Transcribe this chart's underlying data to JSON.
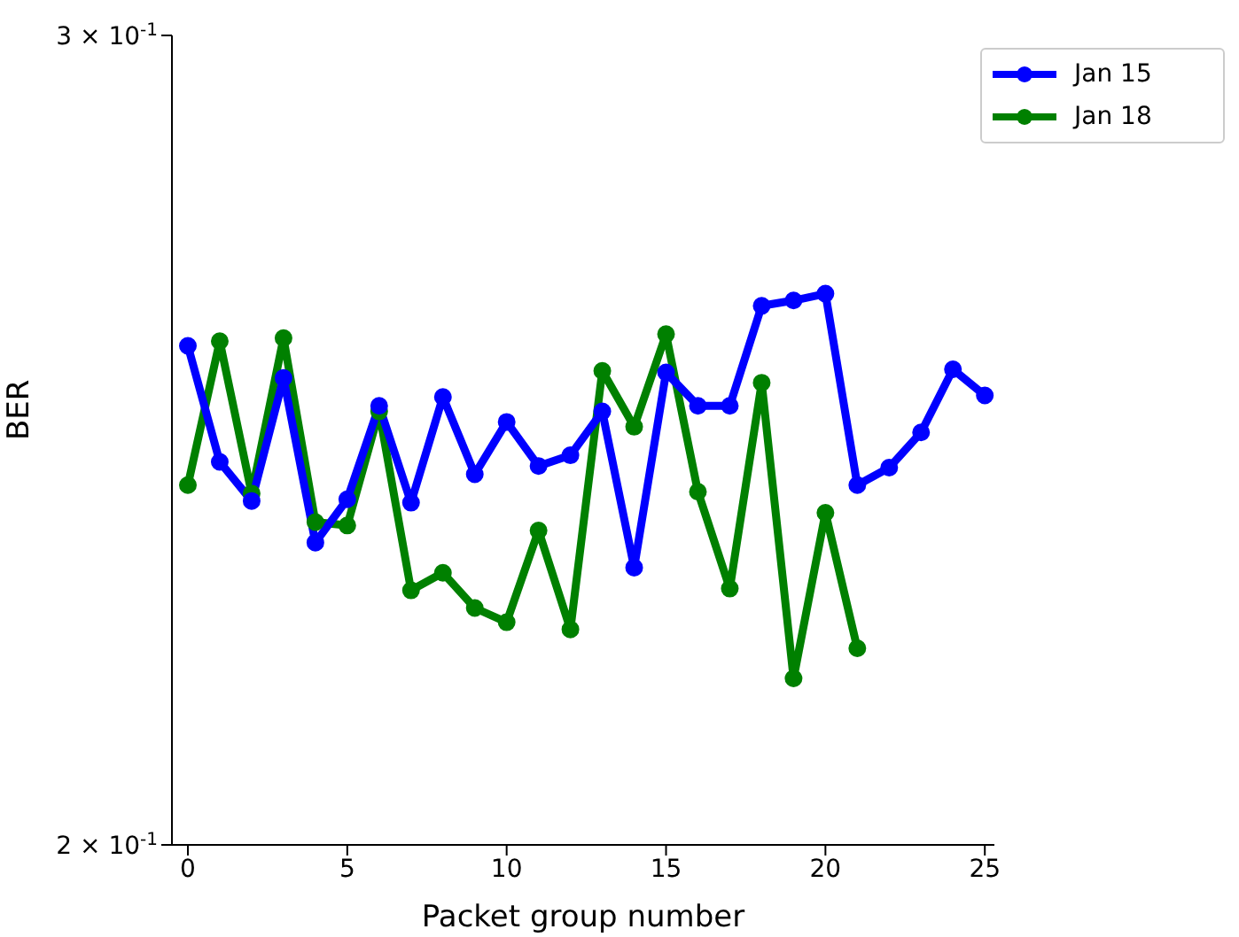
{
  "chart_data": {
    "type": "line",
    "xlabel": "Packet group number",
    "ylabel": "BER",
    "x": [
      0,
      1,
      2,
      3,
      4,
      5,
      6,
      7,
      8,
      9,
      10,
      11,
      12,
      13,
      14,
      15,
      16,
      17,
      18,
      19,
      20,
      21,
      22,
      23,
      24,
      25
    ],
    "series": [
      {
        "name": "Jan 15",
        "color": "#0000ff",
        "values": [
          0.2568,
          0.2423,
          0.2376,
          0.2527,
          0.2327,
          0.2378,
          0.2492,
          0.2374,
          0.2503,
          0.2408,
          0.2472,
          0.2418,
          0.2431,
          0.2485,
          0.2298,
          0.2534,
          0.2492,
          0.2492,
          0.262,
          0.2627,
          0.2636,
          0.2395,
          0.2416,
          0.2459,
          0.2538,
          0.2505
        ]
      },
      {
        "name": "Jan 18",
        "color": "#008000",
        "x": [
          0,
          1,
          2,
          3,
          4,
          5,
          6,
          7,
          8,
          9,
          10,
          11,
          12,
          13,
          14,
          15,
          16,
          17,
          18,
          19,
          20,
          21
        ],
        "values": [
          0.2395,
          0.2574,
          0.2385,
          0.2578,
          0.2351,
          0.2347,
          0.2485,
          0.2272,
          0.2292,
          0.2252,
          0.2236,
          0.2341,
          0.2228,
          0.2536,
          0.2466,
          0.2583,
          0.2387,
          0.2274,
          0.2521,
          0.2174,
          0.2362,
          0.2207
        ]
      }
    ],
    "log": "y",
    "xlim": [
      -0.5,
      25.3
    ],
    "xticks": [
      0,
      5,
      10,
      15,
      20,
      25
    ],
    "ylim": [
      0.2,
      0.3
    ],
    "yticks": [
      {
        "value": 0.2,
        "label": "2 × 10$^{-1}$"
      },
      {
        "value": 0.3,
        "label": "3 × 10$^{-1}$"
      }
    ],
    "marker": "circle",
    "line_style": "solid",
    "legend": "top right",
    "grid": false
  }
}
